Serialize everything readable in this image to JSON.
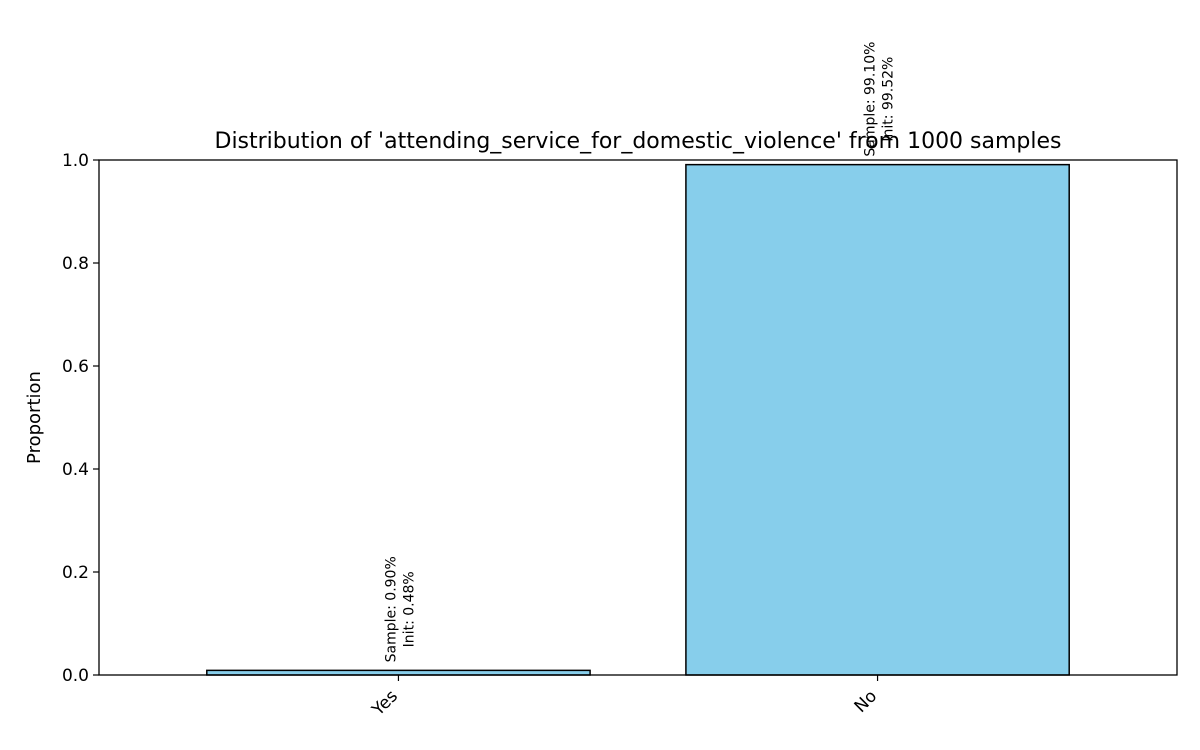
{
  "chart_data": {
    "type": "bar",
    "title": "Distribution of 'attending_service_for_domestic_violence' from 1000 samples",
    "xlabel": "",
    "ylabel": "Proportion",
    "ylim": [
      0,
      1.0
    ],
    "yticks": [
      0.0,
      0.2,
      0.4,
      0.6,
      0.8,
      1.0
    ],
    "ytick_labels": [
      "0.0",
      "0.2",
      "0.4",
      "0.6",
      "0.8",
      "1.0"
    ],
    "categories": [
      "Yes",
      "No"
    ],
    "values": [
      0.009,
      0.991
    ],
    "annotations": [
      {
        "sample": "Sample: 0.90%",
        "init": "Init: 0.48%"
      },
      {
        "sample": "Sample: 99.10%",
        "init": "Init: 99.52%"
      }
    ],
    "bar_color": "#87CEEB",
    "edge_color": "#000000"
  }
}
